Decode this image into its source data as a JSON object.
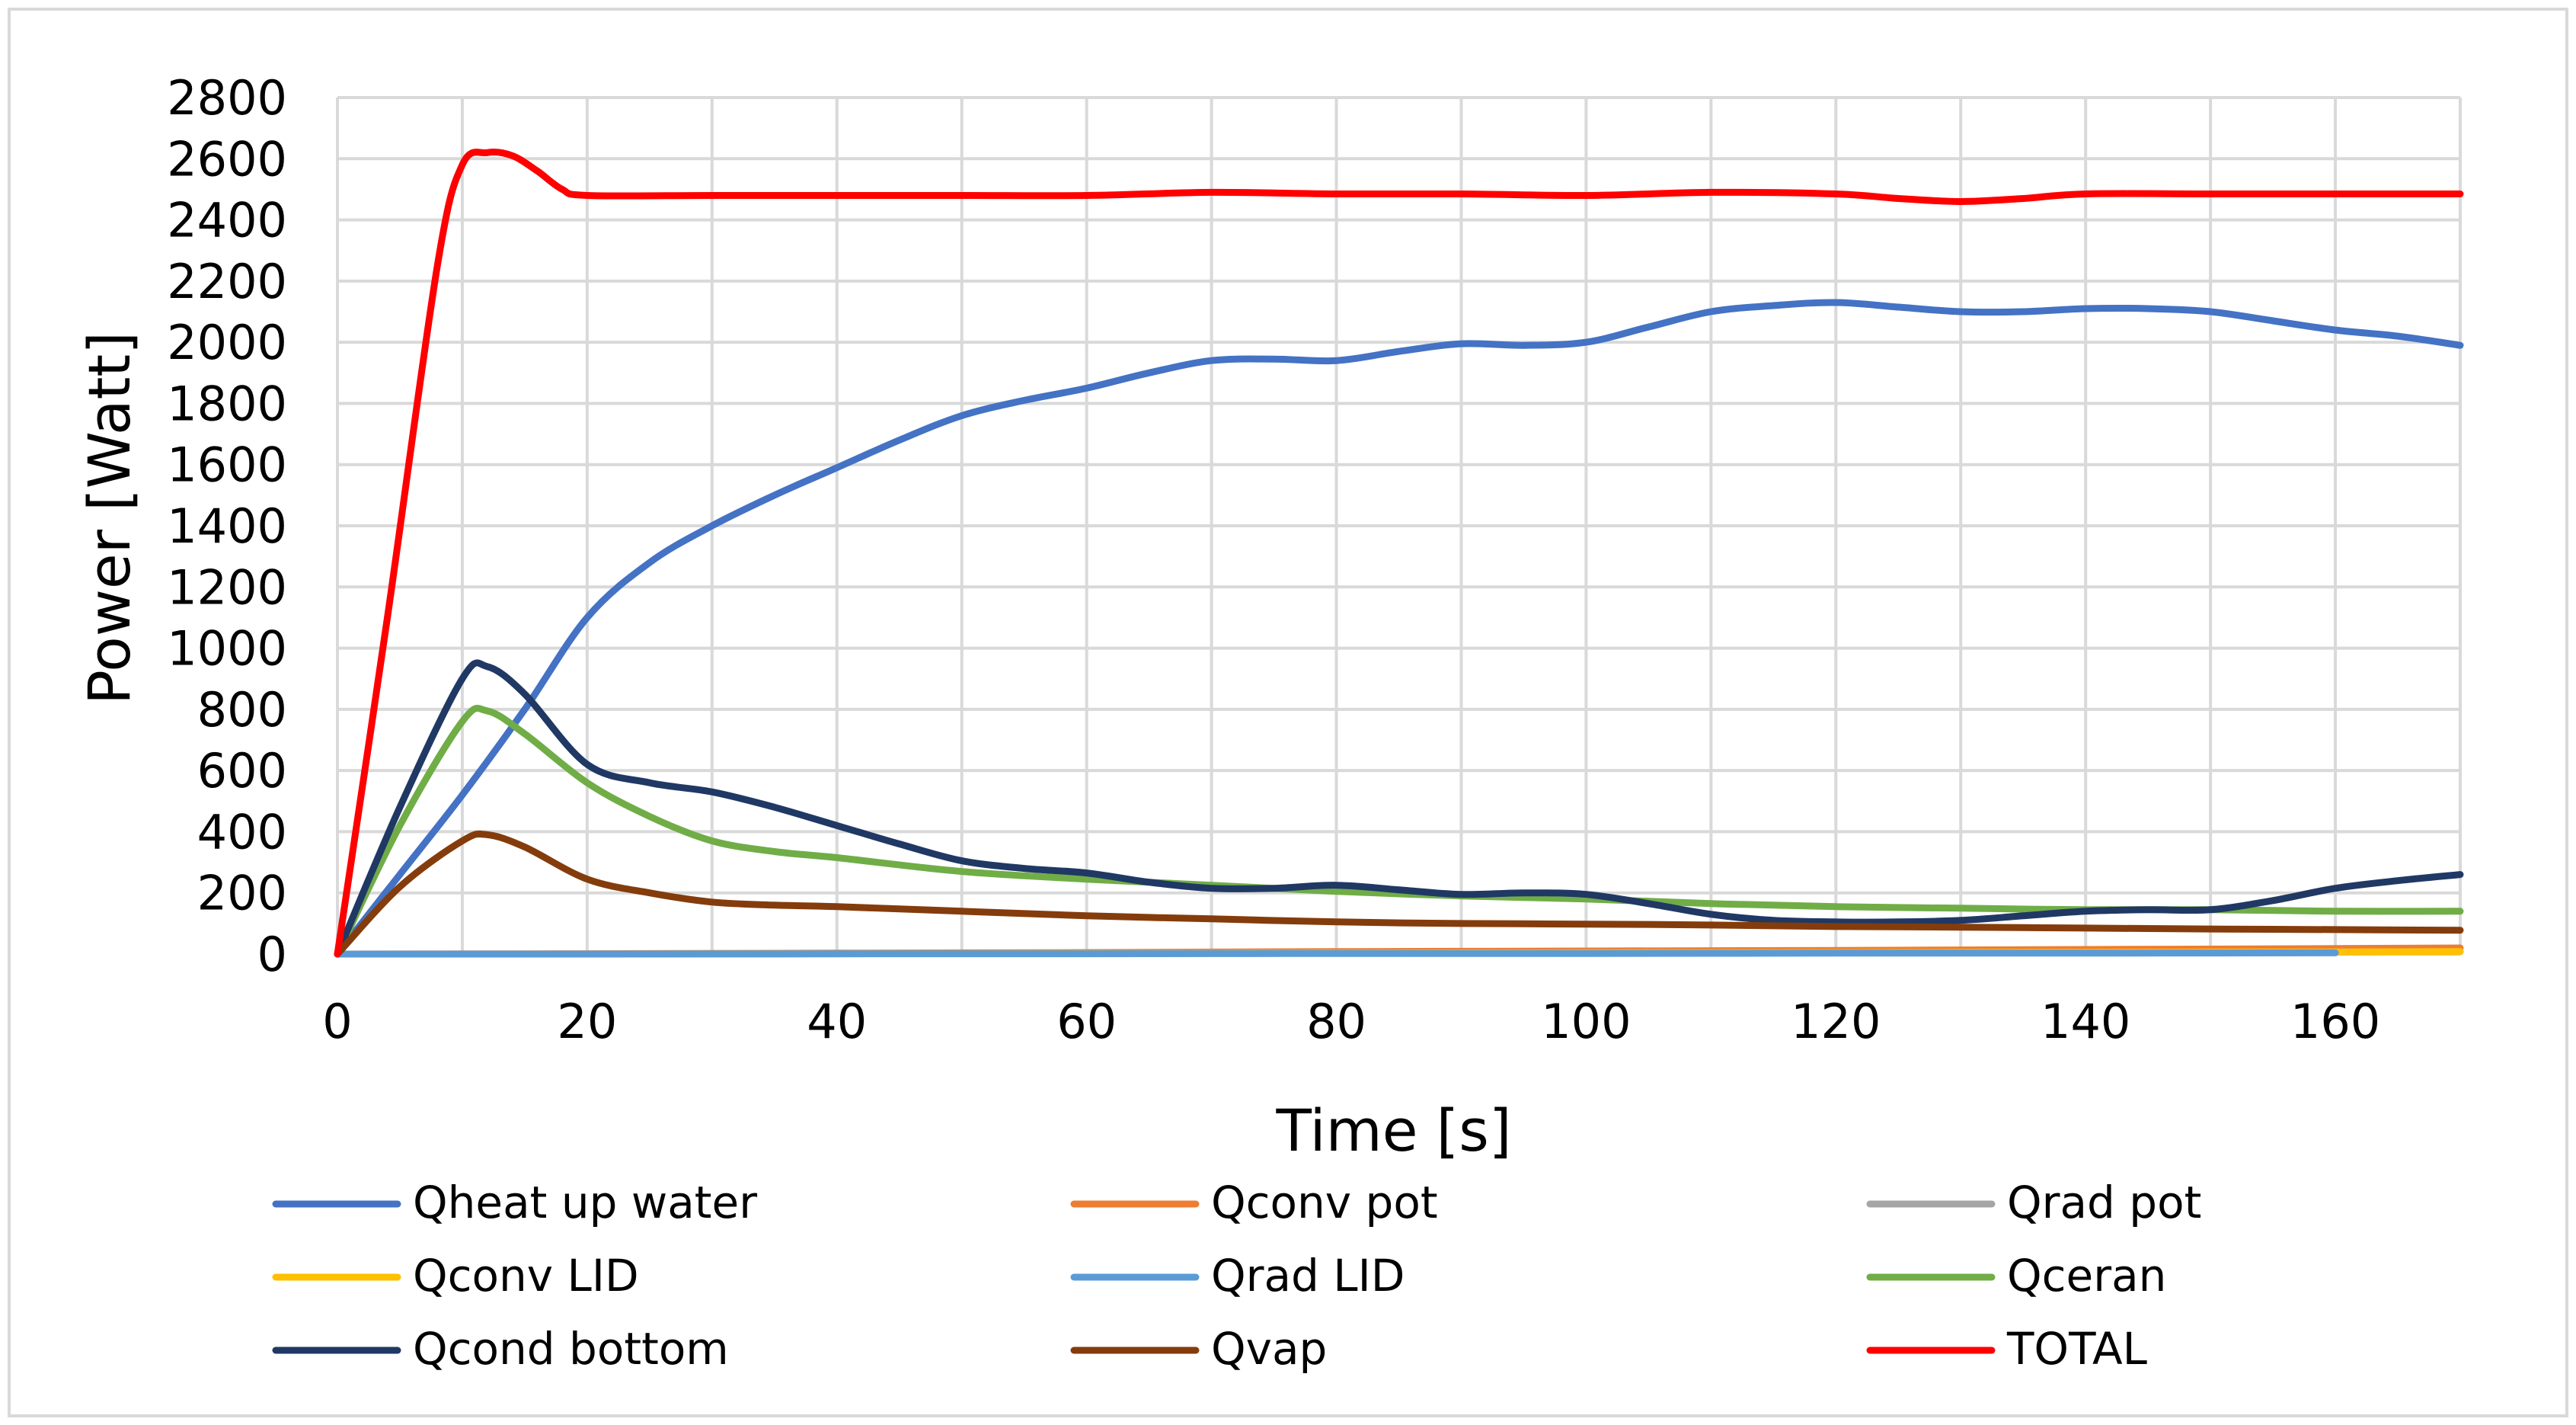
{
  "chart_data": {
    "type": "line",
    "title": "",
    "xlabel": "Time [s]",
    "ylabel": "Power [Watt]",
    "xlim": [
      0,
      170
    ],
    "ylim": [
      0,
      2800
    ],
    "x_ticks": [
      0,
      20,
      40,
      60,
      80,
      100,
      120,
      140,
      160
    ],
    "y_ticks": [
      0,
      200,
      400,
      600,
      800,
      1000,
      1200,
      1400,
      1600,
      1800,
      2000,
      2200,
      2400,
      2600,
      2800
    ],
    "grid": true,
    "legend_position": "bottom",
    "series": [
      {
        "name": "Qheat up water",
        "color": "#4472C4",
        "x": [
          0,
          5,
          10,
          15,
          20,
          25,
          30,
          35,
          40,
          45,
          50,
          55,
          60,
          65,
          70,
          75,
          80,
          85,
          90,
          95,
          100,
          105,
          110,
          115,
          120,
          125,
          130,
          135,
          140,
          145,
          150,
          155,
          160,
          165,
          170
        ],
        "y": [
          0,
          260,
          520,
          800,
          1100,
          1280,
          1400,
          1500,
          1590,
          1680,
          1760,
          1810,
          1850,
          1900,
          1940,
          1945,
          1940,
          1970,
          1995,
          1990,
          2000,
          2050,
          2100,
          2120,
          2130,
          2115,
          2100,
          2100,
          2110,
          2110,
          2100,
          2070,
          2040,
          2020,
          1990
        ]
      },
      {
        "name": "Qconv pot",
        "color": "#ED7D31",
        "x": [
          0,
          20,
          40,
          60,
          80,
          100,
          120,
          140,
          160,
          170
        ],
        "y": [
          0,
          1,
          3,
          5,
          8,
          10,
          12,
          15,
          18,
          20
        ]
      },
      {
        "name": "Qrad pot",
        "color": "#A5A5A5",
        "x": [
          0,
          20,
          40,
          60,
          80,
          100,
          120,
          140,
          160,
          170
        ],
        "y": [
          0,
          0,
          1,
          2,
          3,
          4,
          5,
          6,
          7,
          8
        ]
      },
      {
        "name": "Qconv LID",
        "color": "#FFC000",
        "x": [
          0,
          20,
          40,
          60,
          80,
          100,
          120,
          140,
          160,
          170
        ],
        "y": [
          0,
          0,
          1,
          2,
          3,
          4,
          5,
          6,
          7,
          8
        ]
      },
      {
        "name": "Qrad LID",
        "color": "#5B9BD5",
        "x": [
          0,
          20,
          40,
          60,
          80,
          100,
          120,
          140,
          160
        ],
        "y": [
          0,
          0,
          1,
          1,
          2,
          2,
          3,
          3,
          4
        ]
      },
      {
        "name": "Qceran",
        "color": "#70AD47",
        "x": [
          0,
          5,
          10,
          12,
          15,
          20,
          25,
          30,
          35,
          40,
          50,
          60,
          70,
          80,
          90,
          100,
          110,
          120,
          130,
          140,
          150,
          160,
          170
        ],
        "y": [
          0,
          420,
          760,
          795,
          720,
          560,
          450,
          370,
          335,
          315,
          270,
          245,
          225,
          205,
          190,
          180,
          165,
          155,
          150,
          145,
          145,
          140,
          140
        ]
      },
      {
        "name": "Qcond bottom",
        "color": "#203864",
        "x": [
          0,
          5,
          10,
          12,
          15,
          20,
          25,
          30,
          35,
          40,
          45,
          50,
          55,
          60,
          65,
          70,
          75,
          80,
          85,
          90,
          95,
          100,
          105,
          110,
          115,
          120,
          125,
          130,
          135,
          140,
          145,
          150,
          155,
          160,
          165,
          170
        ],
        "y": [
          0,
          480,
          900,
          940,
          850,
          620,
          560,
          530,
          480,
          420,
          360,
          305,
          280,
          265,
          235,
          215,
          215,
          225,
          210,
          195,
          200,
          195,
          165,
          130,
          110,
          105,
          105,
          110,
          125,
          140,
          145,
          145,
          175,
          215,
          240,
          260
        ]
      },
      {
        "name": "Qvap",
        "color": "#843C0C",
        "x": [
          0,
          5,
          10,
          12,
          15,
          20,
          25,
          30,
          35,
          40,
          50,
          60,
          70,
          80,
          90,
          100,
          110,
          120,
          130,
          140,
          150,
          160,
          170
        ],
        "y": [
          0,
          220,
          370,
          390,
          350,
          245,
          200,
          170,
          160,
          155,
          140,
          125,
          115,
          105,
          100,
          98,
          95,
          90,
          88,
          85,
          82,
          80,
          78
        ]
      },
      {
        "name": "TOTAL",
        "color": "#FF0000",
        "x": [
          0,
          4,
          8,
          10,
          12,
          14,
          16,
          18,
          20,
          30,
          40,
          50,
          60,
          70,
          80,
          90,
          100,
          110,
          120,
          125,
          130,
          135,
          140,
          150,
          160,
          170
        ],
        "y": [
          0,
          1100,
          2250,
          2580,
          2620,
          2610,
          2560,
          2500,
          2480,
          2480,
          2480,
          2480,
          2480,
          2490,
          2485,
          2485,
          2480,
          2490,
          2485,
          2470,
          2460,
          2470,
          2485,
          2485,
          2485,
          2485
        ]
      }
    ]
  }
}
